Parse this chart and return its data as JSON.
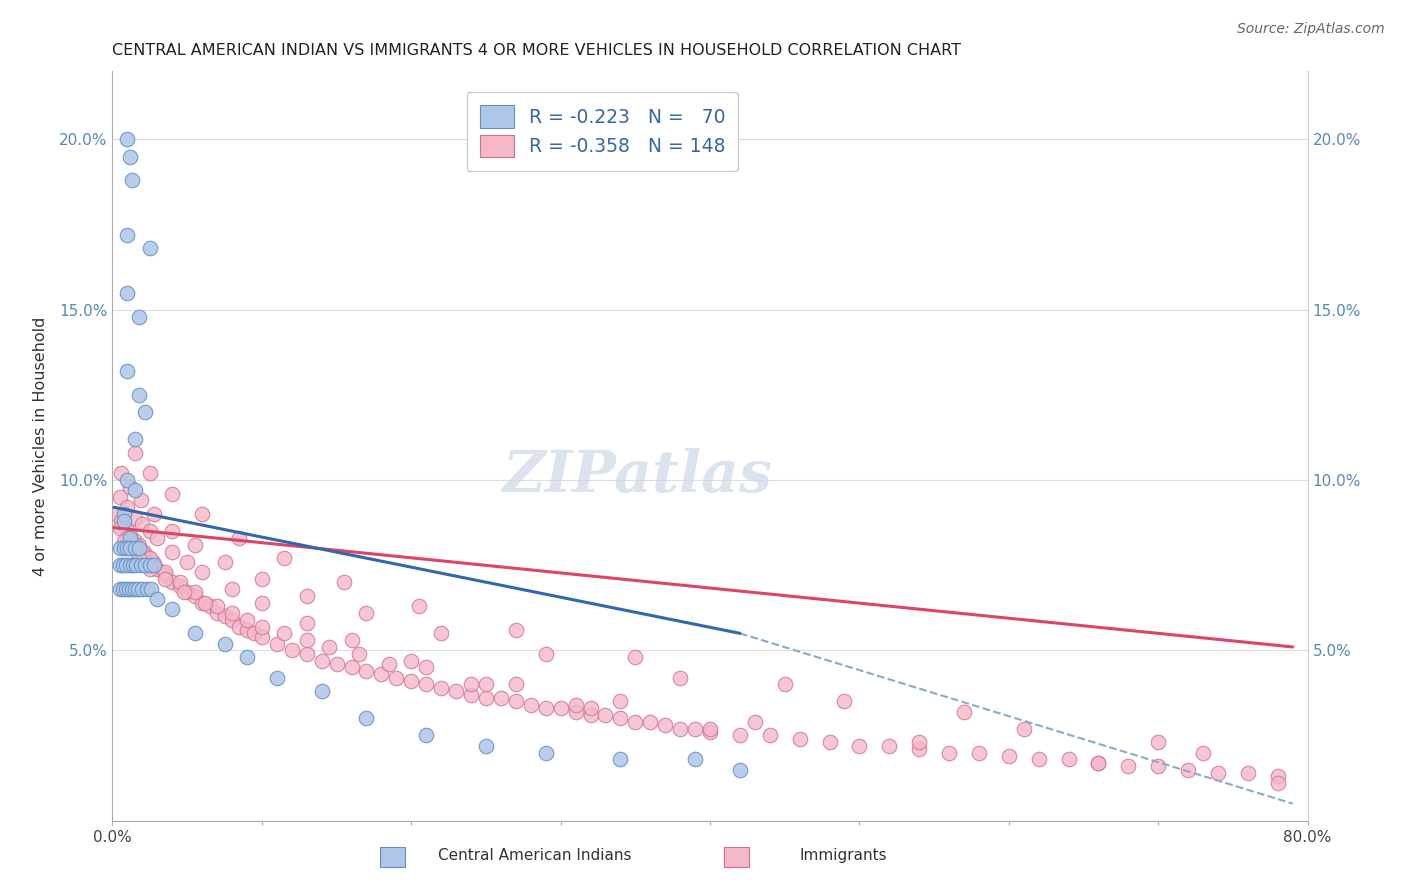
{
  "title": "CENTRAL AMERICAN INDIAN VS IMMIGRANTS 4 OR MORE VEHICLES IN HOUSEHOLD CORRELATION CHART",
  "source": "Source: ZipAtlas.com",
  "ylabel": "4 or more Vehicles in Household",
  "xlim": [
    0,
    0.8
  ],
  "ylim": [
    0,
    0.22
  ],
  "xticks": [
    0.0,
    0.1,
    0.2,
    0.3,
    0.4,
    0.5,
    0.6,
    0.7,
    0.8
  ],
  "xticklabels": [
    "0.0%",
    "",
    "",
    "",
    "",
    "",
    "",
    "",
    "80.0%"
  ],
  "yticks": [
    0.0,
    0.05,
    0.1,
    0.15,
    0.2
  ],
  "yticklabels_left": [
    "",
    "5.0%",
    "10.0%",
    "15.0%",
    "20.0%"
  ],
  "yticklabels_right": [
    "",
    "5.0%",
    "10.0%",
    "15.0%",
    "20.0%"
  ],
  "blue_color": "#aec6e8",
  "pink_color": "#f4b8c8",
  "blue_edge_color": "#6090c0",
  "pink_edge_color": "#d07090",
  "blue_line_color": "#3366aa",
  "pink_line_color": "#dd4466",
  "dash_color": "#88aacc",
  "watermark_color": "#ccd8e8",
  "blue_line_x": [
    0.001,
    0.42
  ],
  "blue_line_y": [
    0.092,
    0.055
  ],
  "pink_line_x": [
    0.001,
    0.79
  ],
  "pink_line_y": [
    0.086,
    0.051
  ],
  "dash_line_x": [
    0.42,
    0.79
  ],
  "dash_line_y": [
    0.055,
    0.005
  ],
  "blue_x": [
    0.01,
    0.012,
    0.013,
    0.01,
    0.025,
    0.01,
    0.018,
    0.01,
    0.018,
    0.022,
    0.015,
    0.01,
    0.015,
    0.008,
    0.008,
    0.012,
    0.005,
    0.008,
    0.01,
    0.012,
    0.015,
    0.018,
    0.005,
    0.007,
    0.009,
    0.012,
    0.014,
    0.016,
    0.019,
    0.022,
    0.025,
    0.028,
    0.005,
    0.007,
    0.009,
    0.011,
    0.013,
    0.015,
    0.017,
    0.02,
    0.023,
    0.026,
    0.03,
    0.04,
    0.055,
    0.075,
    0.09,
    0.11,
    0.14,
    0.17,
    0.21,
    0.25,
    0.29,
    0.34,
    0.39,
    0.42
  ],
  "blue_y": [
    0.2,
    0.195,
    0.188,
    0.172,
    0.168,
    0.155,
    0.148,
    0.132,
    0.125,
    0.12,
    0.112,
    0.1,
    0.097,
    0.09,
    0.088,
    0.083,
    0.08,
    0.08,
    0.08,
    0.08,
    0.08,
    0.08,
    0.075,
    0.075,
    0.075,
    0.075,
    0.075,
    0.075,
    0.075,
    0.075,
    0.075,
    0.075,
    0.068,
    0.068,
    0.068,
    0.068,
    0.068,
    0.068,
    0.068,
    0.068,
    0.068,
    0.068,
    0.065,
    0.062,
    0.055,
    0.052,
    0.048,
    0.042,
    0.038,
    0.03,
    0.025,
    0.022,
    0.02,
    0.018,
    0.018,
    0.015
  ],
  "pink_x": [
    0.003,
    0.006,
    0.009,
    0.012,
    0.015,
    0.018,
    0.021,
    0.024,
    0.027,
    0.03,
    0.035,
    0.04,
    0.045,
    0.05,
    0.055,
    0.06,
    0.065,
    0.07,
    0.075,
    0.08,
    0.085,
    0.09,
    0.095,
    0.1,
    0.11,
    0.12,
    0.13,
    0.14,
    0.15,
    0.16,
    0.17,
    0.18,
    0.19,
    0.2,
    0.21,
    0.22,
    0.23,
    0.24,
    0.25,
    0.26,
    0.27,
    0.28,
    0.29,
    0.3,
    0.31,
    0.32,
    0.33,
    0.34,
    0.35,
    0.36,
    0.37,
    0.38,
    0.39,
    0.4,
    0.42,
    0.44,
    0.46,
    0.48,
    0.5,
    0.52,
    0.54,
    0.56,
    0.58,
    0.6,
    0.62,
    0.64,
    0.66,
    0.68,
    0.7,
    0.72,
    0.74,
    0.76,
    0.78,
    0.005,
    0.01,
    0.015,
    0.02,
    0.025,
    0.03,
    0.04,
    0.05,
    0.06,
    0.08,
    0.1,
    0.13,
    0.16,
    0.2,
    0.25,
    0.32,
    0.005,
    0.01,
    0.015,
    0.02,
    0.025,
    0.035,
    0.045,
    0.055,
    0.07,
    0.09,
    0.115,
    0.145,
    0.185,
    0.24,
    0.31,
    0.4,
    0.008,
    0.012,
    0.018,
    0.025,
    0.035,
    0.048,
    0.062,
    0.08,
    0.1,
    0.13,
    0.165,
    0.21,
    0.27,
    0.34,
    0.43,
    0.54,
    0.66,
    0.78,
    0.006,
    0.012,
    0.019,
    0.028,
    0.04,
    0.055,
    0.075,
    0.1,
    0.13,
    0.17,
    0.22,
    0.29,
    0.38,
    0.49,
    0.61,
    0.73,
    0.015,
    0.025,
    0.04,
    0.06,
    0.085,
    0.115,
    0.155,
    0.205,
    0.27,
    0.35,
    0.45,
    0.57,
    0.7
  ],
  "pink_y": [
    0.09,
    0.088,
    0.086,
    0.084,
    0.082,
    0.081,
    0.079,
    0.077,
    0.076,
    0.074,
    0.072,
    0.07,
    0.069,
    0.067,
    0.066,
    0.064,
    0.063,
    0.061,
    0.06,
    0.059,
    0.057,
    0.056,
    0.055,
    0.054,
    0.052,
    0.05,
    0.049,
    0.047,
    0.046,
    0.045,
    0.044,
    0.043,
    0.042,
    0.041,
    0.04,
    0.039,
    0.038,
    0.037,
    0.036,
    0.036,
    0.035,
    0.034,
    0.033,
    0.033,
    0.032,
    0.031,
    0.031,
    0.03,
    0.029,
    0.029,
    0.028,
    0.027,
    0.027,
    0.026,
    0.025,
    0.025,
    0.024,
    0.023,
    0.022,
    0.022,
    0.021,
    0.02,
    0.02,
    0.019,
    0.018,
    0.018,
    0.017,
    0.016,
    0.016,
    0.015,
    0.014,
    0.014,
    0.013,
    0.095,
    0.092,
    0.089,
    0.087,
    0.085,
    0.083,
    0.079,
    0.076,
    0.073,
    0.068,
    0.064,
    0.058,
    0.053,
    0.047,
    0.04,
    0.033,
    0.086,
    0.083,
    0.081,
    0.079,
    0.077,
    0.073,
    0.07,
    0.067,
    0.063,
    0.059,
    0.055,
    0.051,
    0.046,
    0.04,
    0.034,
    0.027,
    0.082,
    0.08,
    0.077,
    0.074,
    0.071,
    0.067,
    0.064,
    0.061,
    0.057,
    0.053,
    0.049,
    0.045,
    0.04,
    0.035,
    0.029,
    0.023,
    0.017,
    0.011,
    0.102,
    0.098,
    0.094,
    0.09,
    0.085,
    0.081,
    0.076,
    0.071,
    0.066,
    0.061,
    0.055,
    0.049,
    0.042,
    0.035,
    0.027,
    0.02,
    0.108,
    0.102,
    0.096,
    0.09,
    0.083,
    0.077,
    0.07,
    0.063,
    0.056,
    0.048,
    0.04,
    0.032,
    0.023
  ]
}
